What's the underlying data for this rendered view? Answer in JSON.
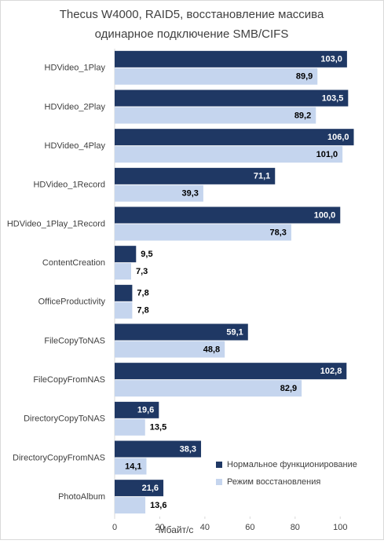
{
  "chart_data": {
    "type": "barh",
    "title": [
      "Thecus W4000, RAID5, восстановление массива",
      "одинарное подключение SMB/CIFS"
    ],
    "categories": [
      "HDVideo_1Play",
      "HDVideo_2Play",
      "HDVideo_4Play",
      "HDVideo_1Record",
      "HDVideo_1Play_1Record",
      "ContentCreation",
      "OfficeProductivity",
      "FileCopyToNAS",
      "FileCopyFromNAS",
      "DirectoryCopyToNAS",
      "DirectoryCopyFromNAS",
      "PhotoAlbum"
    ],
    "series": [
      {
        "name": "Нормальное функционирование",
        "color": "#1f3864",
        "values": [
          103.0,
          103.5,
          106.0,
          71.1,
          100.0,
          9.5,
          7.8,
          59.1,
          102.8,
          19.6,
          38.3,
          21.6
        ],
        "value_labels": [
          "103,0",
          "103,5",
          "106,0",
          "71,1",
          "100,0",
          "9,5",
          "7,8",
          "59,1",
          "102,8",
          "19,6",
          "38,3",
          "21,6"
        ]
      },
      {
        "name": "Режим восстановления",
        "color": "#c5d5ee",
        "values": [
          89.9,
          89.2,
          101.0,
          39.3,
          78.3,
          7.3,
          7.8,
          48.8,
          82.9,
          13.5,
          14.1,
          13.6
        ],
        "value_labels": [
          "89,9",
          "89,2",
          "101,0",
          "39,3",
          "78,3",
          "7,3",
          "7,8",
          "48,8",
          "82,9",
          "13,5",
          "14,1",
          "13,6"
        ]
      }
    ],
    "xlabel": "Мбайт/с",
    "xlim": [
      0,
      110
    ],
    "xticks": [
      0,
      20,
      40,
      60,
      80,
      100
    ],
    "grid": false,
    "legend": "lower right"
  }
}
